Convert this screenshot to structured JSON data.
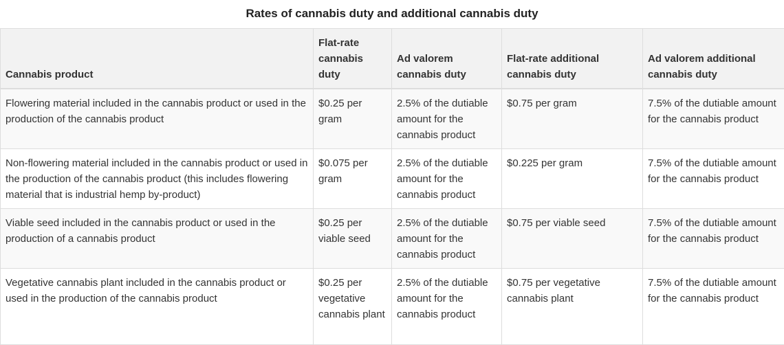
{
  "title": "Rates of cannabis duty and additional cannabis duty",
  "headers": [
    "Cannabis product",
    "Flat-rate cannabis duty",
    "Ad valorem cannabis duty",
    "Flat-rate additional cannabis duty",
    "Ad valorem additional cannabis duty"
  ],
  "rows": [
    [
      "Flowering material included in the cannabis product or used in the production of the cannabis product",
      "$0.25 per gram",
      "2.5% of the dutiable amount for the cannabis product",
      "$0.75 per gram",
      "7.5% of the dutiable amount for the cannabis product"
    ],
    [
      "Non-flowering material included in the cannabis product or used in the production of the cannabis product (this includes flowering material that is industrial hemp by-product)",
      "$0.075 per gram",
      "2.5% of the dutiable amount for the cannabis product",
      "$0.225 per gram",
      "7.5% of the dutiable amount for the cannabis product"
    ],
    [
      "Viable seed included in the cannabis product or used in the production of a cannabis product",
      "$0.25 per viable seed",
      "2.5% of the dutiable amount for the cannabis product",
      "$0.75 per viable seed",
      "7.5% of the dutiable amount for the cannabis product"
    ],
    [
      "Vegetative cannabis plant included in the cannabis product or used in the production of the cannabis product",
      "$0.25 per vegetative cannabis plant",
      "2.5% of the dutiable amount for the cannabis product",
      "$0.75 per vegetative cannabis plant",
      "7.5% of the dutiable amount for the cannabis product"
    ]
  ]
}
